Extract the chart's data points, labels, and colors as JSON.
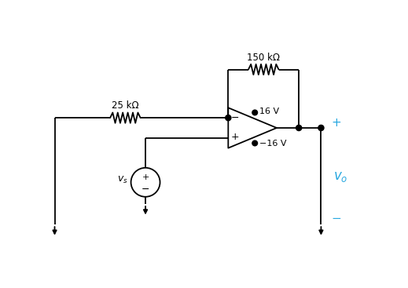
{
  "bg_color": "#ffffff",
  "line_color": "#000000",
  "blue_color": "#29a8e0",
  "fig_width": 5.19,
  "fig_height": 3.67,
  "label_25k": "25 kΩ",
  "label_150k": "150 kΩ",
  "label_16V": "16 V",
  "label_neg16V": "−16 V",
  "label_vs": "$v_s$",
  "label_vo": "$v_o$",
  "label_plus": "+",
  "label_minus": "−"
}
